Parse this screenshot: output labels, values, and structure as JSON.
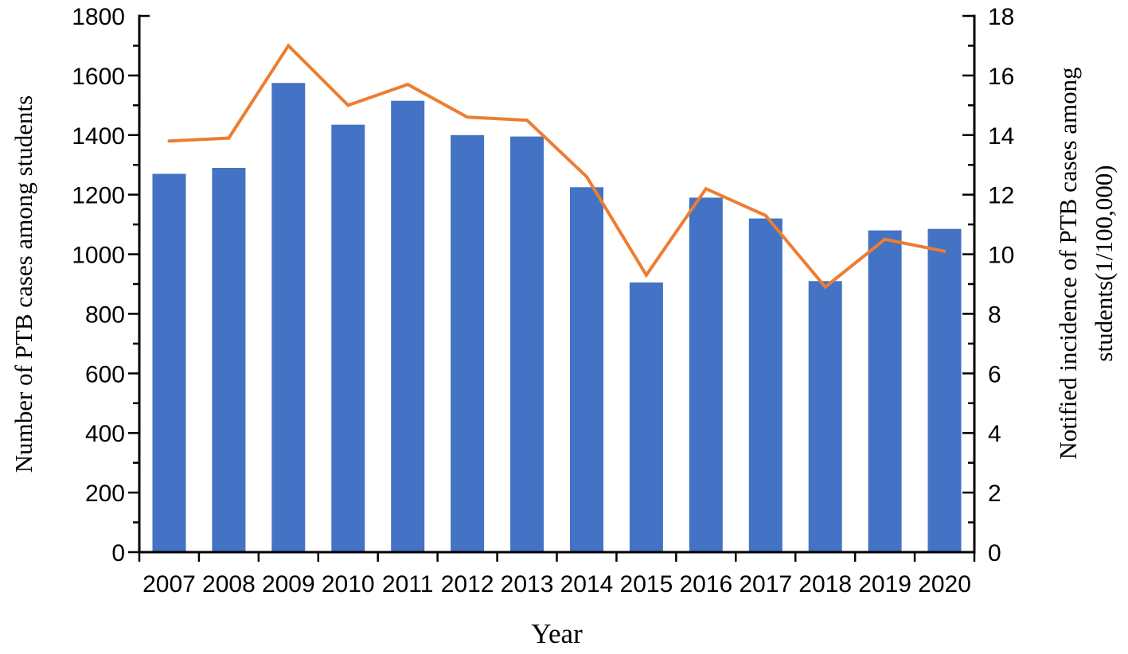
{
  "chart_data": {
    "type": "combo",
    "categories": [
      "2007",
      "2008",
      "2009",
      "2010",
      "2011",
      "2012",
      "2013",
      "2014",
      "2015",
      "2016",
      "2017",
      "2018",
      "2019",
      "2020"
    ],
    "series": [
      {
        "name": "Number of PTB cases among students",
        "type": "bar",
        "axis": "left",
        "color": "#4472C4",
        "values": [
          1270,
          1290,
          1575,
          1435,
          1515,
          1400,
          1395,
          1225,
          905,
          1190,
          1120,
          910,
          1080,
          1085
        ]
      },
      {
        "name": "Notified incidence of PTB cases among students(1/100,000)",
        "type": "line",
        "axis": "right",
        "color": "#ED7D31",
        "values": [
          13.8,
          13.9,
          17.0,
          15.0,
          15.7,
          14.6,
          14.5,
          12.6,
          9.3,
          12.2,
          11.3,
          8.9,
          10.5,
          10.1
        ]
      }
    ],
    "title": "",
    "xlabel": "Year",
    "ylabel_left": "Number of PTB cases among students",
    "ylabel_right_lines": [
      "Notified incidence of PTB cases among",
      "students(1/100,000)"
    ],
    "y_left": {
      "min": 0,
      "max": 1800,
      "major": 200,
      "minor": 100,
      "tick_labels": [
        "0",
        "200",
        "400",
        "600",
        "800",
        "1000",
        "1200",
        "1400",
        "1600",
        "1800"
      ]
    },
    "y_right": {
      "min": 0,
      "max": 18,
      "major": 2,
      "minor": 1,
      "tick_labels": [
        "0",
        "2",
        "4",
        "6",
        "8",
        "10",
        "12",
        "14",
        "16",
        "18"
      ]
    },
    "grid": false,
    "legend": "none",
    "axis_color": "#000000",
    "background": "#FFFFFF"
  }
}
